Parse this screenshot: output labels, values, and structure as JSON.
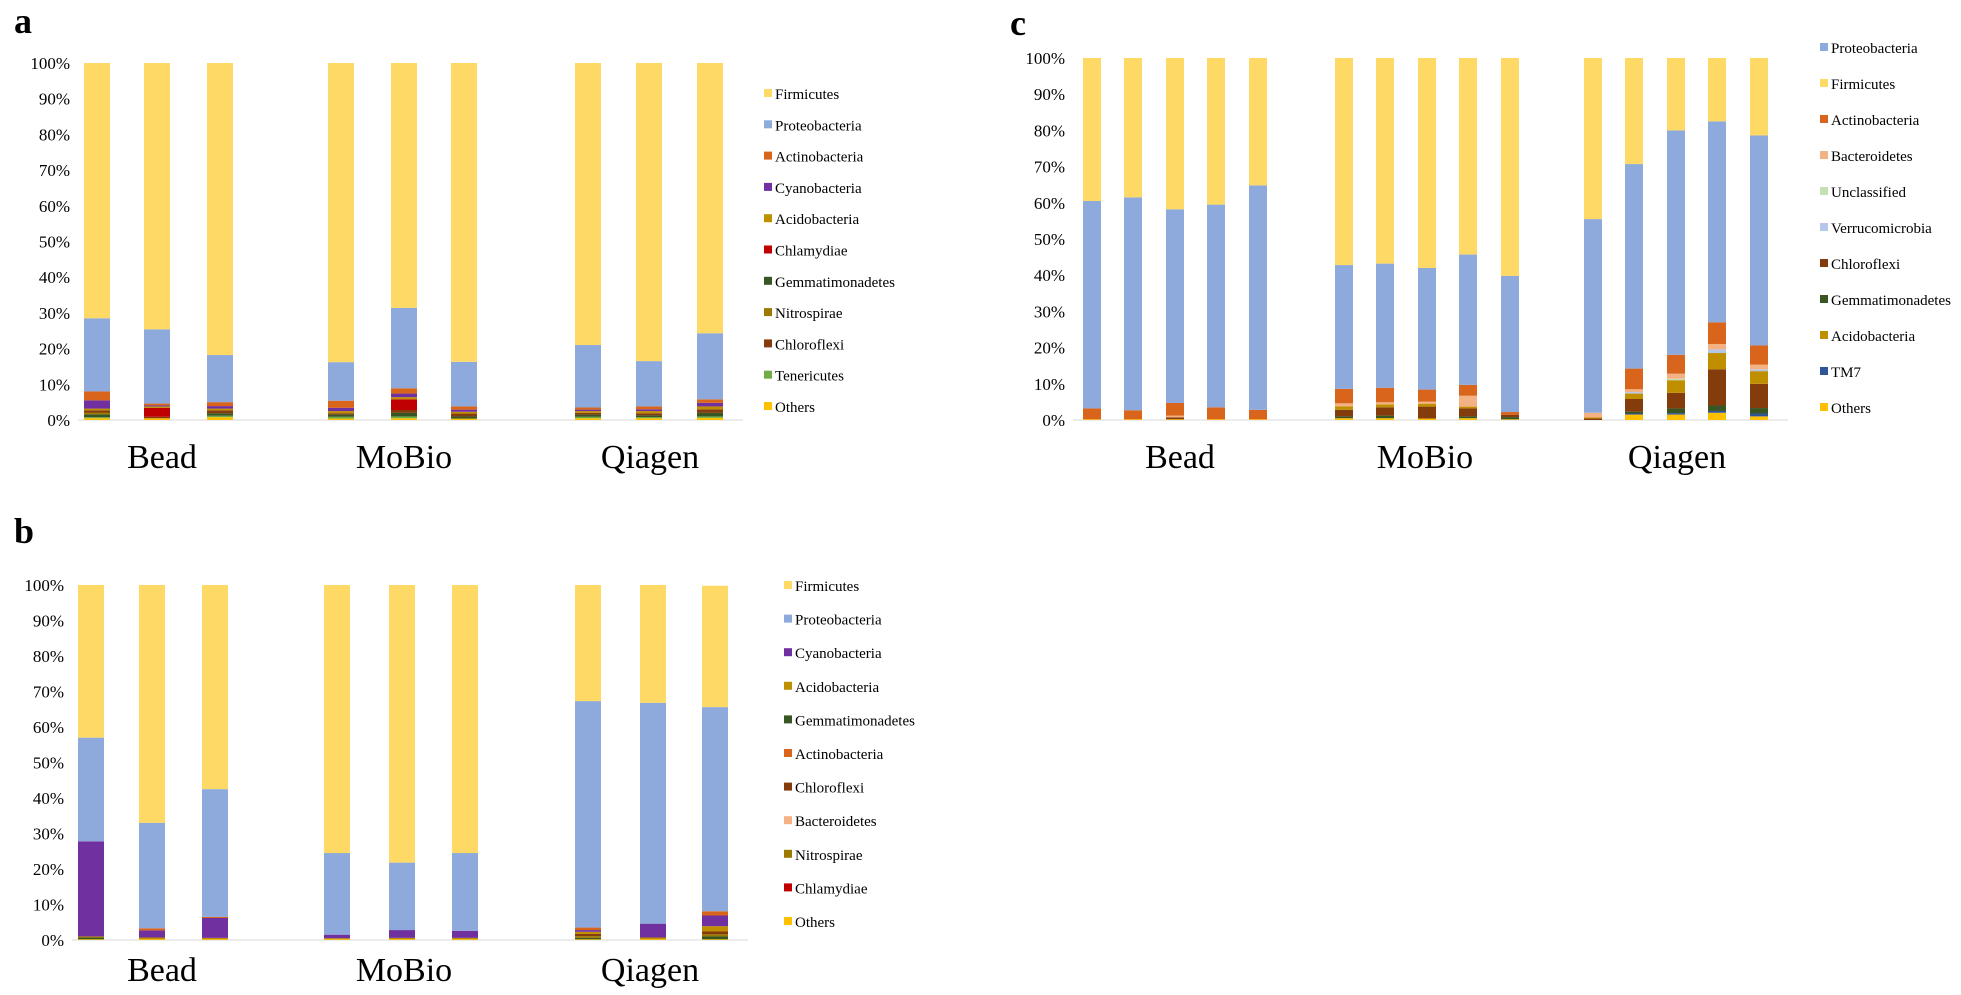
{
  "panels": {
    "a": "a",
    "b": "b",
    "c": "c"
  },
  "colors": {
    "Firmicutes": "#FFD966",
    "Proteobacteria": "#8EA9DB",
    "Actinobacteria": "#D9651C",
    "Cyanobacteria": "#7030A0",
    "Acidobacteria": "#BF8F00",
    "Chlamydiae": "#C00000",
    "Gemmatimonadetes": "#375623",
    "Nitrospirae": "#9C7A00",
    "Chloroflexi": "#843C0C",
    "Tenericutes": "#70AD47",
    "Others": "#FFC000",
    "Bacteroidetes": "#F4B183",
    "Unclassified": "#C5E0B4",
    "Verrucomicrobia": "#B4C7E7",
    "TM7": "#2F5597"
  },
  "chart_data": [
    {
      "id": "a",
      "type": "bar",
      "stacked": true,
      "yticks": [
        "0%",
        "10%",
        "20%",
        "30%",
        "40%",
        "50%",
        "60%",
        "70%",
        "80%",
        "90%",
        "100%"
      ],
      "ylim": [
        0,
        100
      ],
      "groups": [
        "Bead",
        "MoBio",
        "Qiagen"
      ],
      "bars_per_group": 3,
      "legend": [
        "Firmicutes",
        "Proteobacteria",
        "Actinobacteria",
        "Cyanobacteria",
        "Acidobacteria",
        "Chlamydiae",
        "Gemmatimonadetes",
        "Nitrospirae",
        "Chloroflexi",
        "Tenericutes",
        "Others"
      ],
      "bars": [
        {
          "Others": 0.5,
          "Tenericutes": 0.3,
          "Gemmatimonadetes": 0.8,
          "Nitrospirae": 0.5,
          "Chloroflexi": 0.6,
          "Acidobacteria": 0.5,
          "Cyanobacteria": 2.3,
          "Actinobacteria": 2.5,
          "Proteobacteria": 20.5,
          "Firmicutes": 71.5
        },
        {
          "Others": 0.5,
          "Chloroflexi": 0.4,
          "Chlamydiae": 2.5,
          "Acidobacteria": 0.4,
          "Cyanobacteria": 0.3,
          "Actinobacteria": 0.5,
          "Proteobacteria": 20.8,
          "Firmicutes": 74.6
        },
        {
          "Others": 0.8,
          "Tenericutes": 0.4,
          "Gemmatimonadetes": 0.7,
          "Chloroflexi": 0.8,
          "Acidobacteria": 0.5,
          "Cyanobacteria": 0.7,
          "Actinobacteria": 1.1,
          "Proteobacteria": 13.2,
          "Firmicutes": 81.8
        },
        {
          "Others": 0.4,
          "Tenericutes": 0.5,
          "Gemmatimonadetes": 0.6,
          "Chloroflexi": 0.4,
          "Acidobacteria": 0.6,
          "Cyanobacteria": 0.9,
          "Actinobacteria": 2.0,
          "Proteobacteria": 10.8,
          "Firmicutes": 83.8
        },
        {
          "Others": 0.5,
          "Tenericutes": 0.5,
          "Gemmatimonadetes": 1.0,
          "Chloroflexi": 0.8,
          "Chlamydiae": 3.0,
          "Acidobacteria": 0.6,
          "Cyanobacteria": 1.0,
          "Actinobacteria": 1.5,
          "Proteobacteria": 22.5,
          "Firmicutes": 68.6
        },
        {
          "Others": 0.4,
          "Gemmatimonadetes": 0.6,
          "Chloroflexi": 0.8,
          "Acidobacteria": 0.5,
          "Cyanobacteria": 0.6,
          "Actinobacteria": 0.9,
          "Proteobacteria": 12.5,
          "Firmicutes": 83.7
        },
        {
          "Others": 0.5,
          "Tenericutes": 0.4,
          "Gemmatimonadetes": 0.6,
          "Chloroflexi": 0.5,
          "Acidobacteria": 0.5,
          "Cyanobacteria": 0.4,
          "Actinobacteria": 0.6,
          "Proteobacteria": 17.5,
          "Firmicutes": 79.0
        },
        {
          "Others": 0.5,
          "Tenericutes": 0.3,
          "Gemmatimonadetes": 0.5,
          "Chloroflexi": 0.6,
          "Acidobacteria": 0.6,
          "Cyanobacteria": 0.5,
          "Actinobacteria": 0.8,
          "Proteobacteria": 12.7,
          "Firmicutes": 83.5
        },
        {
          "Others": 0.6,
          "Tenericutes": 0.4,
          "Gemmatimonadetes": 1.0,
          "Chloroflexi": 1.0,
          "Acidobacteria": 0.8,
          "Cyanobacteria": 1.0,
          "Actinobacteria": 1.0,
          "Proteobacteria": 18.5,
          "Firmicutes": 75.7
        }
      ]
    },
    {
      "id": "b",
      "type": "bar",
      "stacked": true,
      "yticks": [
        "0%",
        "10%",
        "20%",
        "30%",
        "40%",
        "50%",
        "60%",
        "70%",
        "80%",
        "90%",
        "100%"
      ],
      "ylim": [
        0,
        100
      ],
      "groups": [
        "Bead",
        "MoBio",
        "Qiagen"
      ],
      "bars_per_group": 3,
      "legend": [
        "Firmicutes",
        "Proteobacteria",
        "Cyanobacteria",
        "Acidobacteria",
        "Gemmatimonadetes",
        "Actinobacteria",
        "Chloroflexi",
        "Bacteroidetes",
        "Nitrospirae",
        "Chlamydiae",
        "Others"
      ],
      "bars": [
        {
          "Others": 0.2,
          "Gemmatimonadetes": 0.5,
          "Acidobacteria": 0.3,
          "Cyanobacteria": 26.8,
          "Proteobacteria": 29.2,
          "Firmicutes": 43.0
        },
        {
          "Others": 0.2,
          "Actinobacteria": 0.6,
          "Acidobacteria": 0.5,
          "Cyanobacteria": 2.0,
          "Proteobacteria": 29.7,
          "Firmicutes": 67.0
        },
        {
          "Others": 0.2,
          "Actinobacteria": 0.3,
          "Acidobacteria": 0.4,
          "Cyanobacteria": 5.6,
          "Proteobacteria": 36.0,
          "Firmicutes": 57.5
        },
        {
          "Others": 0.2,
          "Acidobacteria": 0.3,
          "Cyanobacteria": 1.0,
          "Proteobacteria": 23.0,
          "Firmicutes": 75.5
        },
        {
          "Others": 0.2,
          "Acidobacteria": 0.4,
          "Cyanobacteria": 2.2,
          "Proteobacteria": 19.0,
          "Firmicutes": 78.2
        },
        {
          "Others": 0.2,
          "Acidobacteria": 0.4,
          "Cyanobacteria": 2.0,
          "Proteobacteria": 21.9,
          "Firmicutes": 75.5
        },
        {
          "Others": 0.2,
          "Nitrospirae": 0.5,
          "Chloroflexi": 0.6,
          "Actinobacteria": 0.7,
          "Gemmatimonadetes": 0.4,
          "Acidobacteria": 0.6,
          "Cyanobacteria": 0.5,
          "Proteobacteria": 63.8,
          "Firmicutes": 32.7
        },
        {
          "Others": 0.2,
          "Acidobacteria": 0.5,
          "Cyanobacteria": 3.9,
          "Proteobacteria": 62.2,
          "Firmicutes": 33.2
        },
        {
          "Others": 0.2,
          "Nitrospirae": 0.6,
          "Chloroflexi": 0.8,
          "Actinobacteria": 1.2,
          "Gemmatimonadetes": 0.8,
          "Acidobacteria": 1.5,
          "Cyanobacteria": 3.0,
          "Proteobacteria": 57.5,
          "Firmicutes": 34.2
        }
      ]
    },
    {
      "id": "c",
      "type": "bar",
      "stacked": true,
      "yticks": [
        "0%",
        "10%",
        "20%",
        "30%",
        "40%",
        "50%",
        "60%",
        "70%",
        "80%",
        "90%",
        "100%"
      ],
      "ylim": [
        0,
        100
      ],
      "groups": [
        "Bead",
        "MoBio",
        "Qiagen"
      ],
      "bars_per_group": 5,
      "legend": [
        "Proteobacteria",
        "Firmicutes",
        "Actinobacteria",
        "Bacteroidetes",
        "Unclassified",
        "Verrucomicrobia",
        "Chloroflexi",
        "Gemmatimonadetes",
        "Acidobacteria",
        "TM7",
        "Others"
      ],
      "bars": [
        {
          "Others": 0.2,
          "Actinobacteria": 3.0,
          "Firmicutes": 39.5,
          "Proteobacteria": 57.3
        },
        {
          "Others": 0.2,
          "Actinobacteria": 2.5,
          "Firmicutes": 38.5,
          "Proteobacteria": 58.8
        },
        {
          "Others": 0.2,
          "Chloroflexi": 0.5,
          "Bacteroidetes": 0.5,
          "Actinobacteria": 3.5,
          "Firmicutes": 41.8,
          "Proteobacteria": 53.5
        },
        {
          "Others": 0.2,
          "Actinobacteria": 3.3,
          "Firmicutes": 40.5,
          "Proteobacteria": 56.0
        },
        {
          "Others": 0.2,
          "Actinobacteria": 2.6,
          "Firmicutes": 35.2,
          "Proteobacteria": 62.0
        },
        {
          "Others": 0.5,
          "Gemmatimonadetes": 0.5,
          "Chloroflexi": 1.8,
          "Acidobacteria": 1.0,
          "Bacteroidetes": 0.8,
          "Actinobacteria": 4.0,
          "Firmicutes": 57.2,
          "Proteobacteria": 34.2
        },
        {
          "Others": 0.5,
          "Gemmatimonadetes": 0.7,
          "Chloroflexi": 2.3,
          "Acidobacteria": 0.8,
          "Bacteroidetes": 0.6,
          "Actinobacteria": 4.0,
          "Firmicutes": 56.8,
          "Proteobacteria": 34.3
        },
        {
          "Others": 0.4,
          "Chloroflexi": 3.3,
          "Acidobacteria": 0.8,
          "Bacteroidetes": 0.6,
          "Actinobacteria": 3.3,
          "Firmicutes": 58.0,
          "Proteobacteria": 33.6
        },
        {
          "Others": 0.5,
          "Gemmatimonadetes": 0.5,
          "Chloroflexi": 2.2,
          "Acidobacteria": 0.5,
          "Bacteroidetes": 3.0,
          "Actinobacteria": 3.0,
          "Firmicutes": 54.3,
          "Proteobacteria": 36.0
        },
        {
          "Others": 0.2,
          "Gemmatimonadetes": 0.6,
          "Chloroflexi": 0.6,
          "Actinobacteria": 0.8,
          "Firmicutes": 60.2,
          "Proteobacteria": 37.6
        },
        {
          "Bacteroidetes": 1.3,
          "Chloroflexi": 0.4,
          "Acidobacteria": 0.3,
          "Firmicutes": 44.5,
          "Proteobacteria": 53.5
        },
        {
          "Others": 1.5,
          "TM7": 0.3,
          "Acidobacteria": 1.5,
          "Gemmatimonadetes": 0.5,
          "Chloroflexi": 3.5,
          "Verrucomicrobia": 0.4,
          "Bacteroidetes": 0.8,
          "Actinobacteria": 5.7,
          "Firmicutes": 29.3,
          "Proteobacteria": 56.5
        },
        {
          "Others": 1.5,
          "TM7": 0.4,
          "Acidobacteria": 3.5,
          "Gemmatimonadetes": 1.3,
          "Chloroflexi": 4.3,
          "Unclassified": 0.4,
          "Bacteroidetes": 1.4,
          "Actinobacteria": 5.2,
          "Firmicutes": 20.0,
          "Proteobacteria": 62.0
        },
        {
          "Others": 2.0,
          "TM7": 0.5,
          "Acidobacteria": 4.5,
          "Gemmatimonadetes": 1.5,
          "Chloroflexi": 10.0,
          "Verrucomicrobia": 1.0,
          "Bacteroidetes": 1.5,
          "Actinobacteria": 6.0,
          "Firmicutes": 17.5,
          "Proteobacteria": 55.5
        },
        {
          "Others": 1.0,
          "TM7": 0.8,
          "Acidobacteria": 3.5,
          "Gemmatimonadetes": 1.5,
          "Chloroflexi": 6.7,
          "Verrucomicrobia": 0.5,
          "Bacteroidetes": 1.3,
          "Actinobacteria": 5.3,
          "Firmicutes": 21.4,
          "Proteobacteria": 58.0
        }
      ]
    }
  ]
}
